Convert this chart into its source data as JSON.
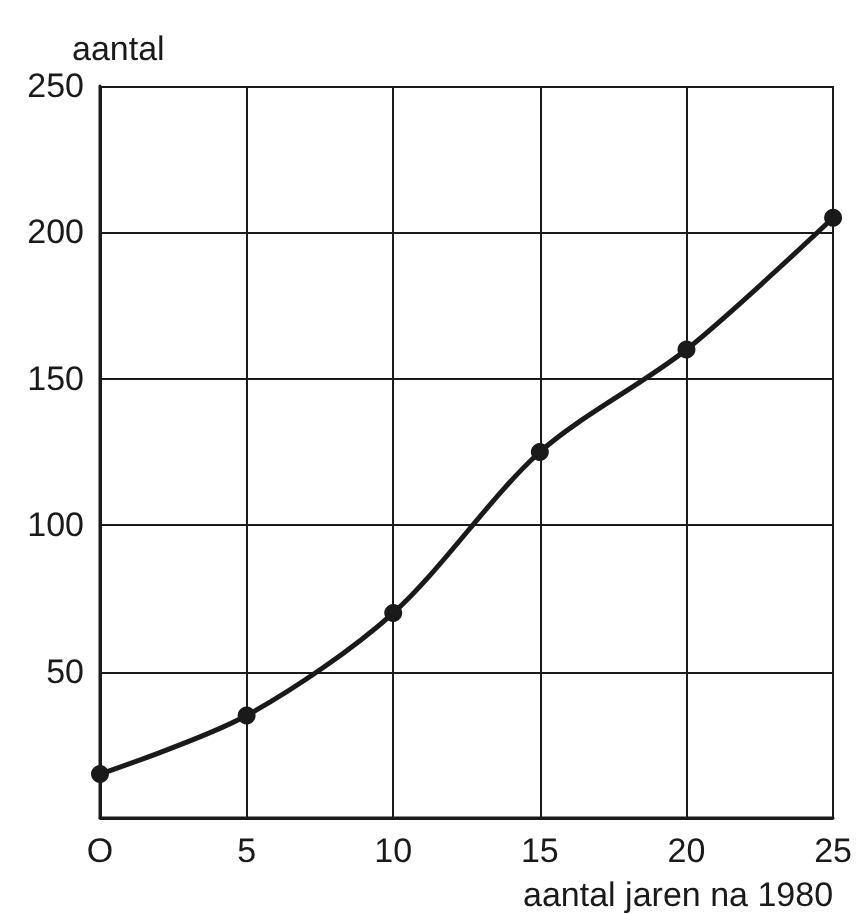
{
  "chart_data": {
    "type": "line",
    "xlabel": "aantal jaren na 1980",
    "ylabel": "aantal",
    "x": [
      0,
      5,
      10,
      15,
      20,
      25
    ],
    "series": [
      {
        "color": "#1a1a1a",
        "values": [
          15,
          35,
          70,
          125,
          160,
          205
        ]
      }
    ],
    "xlim": [
      0,
      25
    ],
    "xticks": [
      {
        "value": 0,
        "label": "O"
      },
      5,
      10,
      15,
      20,
      25
    ],
    "ylim": [
      0,
      250
    ],
    "yticks": [
      {
        "value": 0,
        "label": null
      },
      50,
      100,
      150,
      200,
      250
    ],
    "grid": true,
    "marker": "circle",
    "line_style": "solid"
  }
}
